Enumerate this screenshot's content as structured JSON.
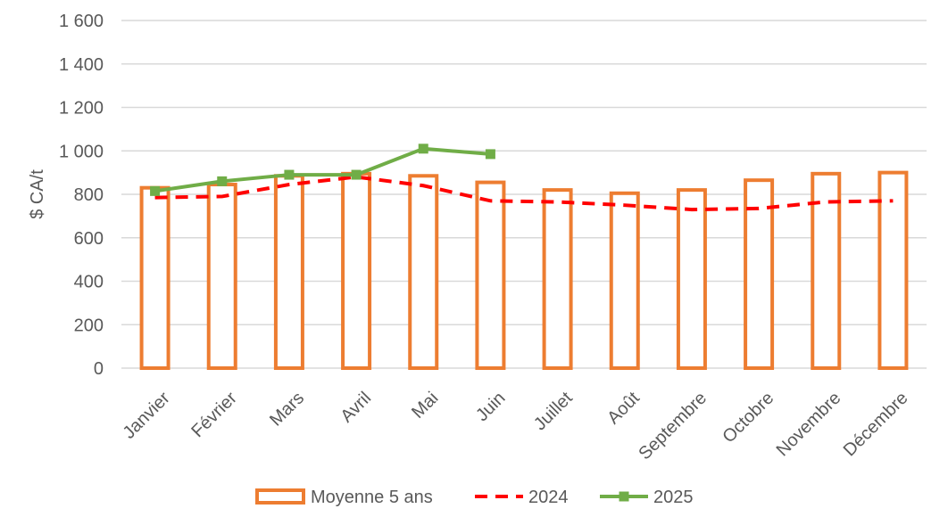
{
  "chart_data": {
    "type": "bar",
    "ylabel": "$ CA/t",
    "ylim": [
      0,
      1600
    ],
    "yticks": [
      0,
      200,
      400,
      600,
      800,
      1000,
      1200,
      1400,
      1600
    ],
    "ytick_labels": [
      "0",
      "200",
      "400",
      "600",
      "800",
      "1 000",
      "1 200",
      "1 400",
      "1 600"
    ],
    "grid": true,
    "legend_position": "bottom",
    "categories": [
      "Janvier",
      "Février",
      "Mars",
      "Avril",
      "Mai",
      "Juin",
      "Juillet",
      "Août",
      "Septembre",
      "Octobre",
      "Novembre",
      "Décembre"
    ],
    "series": [
      {
        "name": "Moyenne 5 ans",
        "type": "bar",
        "style": "outline",
        "color": "#ED7D31",
        "values": [
          830,
          845,
          885,
          895,
          885,
          855,
          820,
          805,
          820,
          865,
          895,
          900
        ]
      },
      {
        "name": "2024",
        "type": "line",
        "style": "dashed",
        "color": "#FF0000",
        "values": [
          785,
          790,
          845,
          880,
          840,
          770,
          765,
          750,
          730,
          735,
          765,
          770
        ]
      },
      {
        "name": "2025",
        "type": "line",
        "style": "solid-square-markers",
        "color": "#70AD47",
        "values": [
          815,
          860,
          890,
          890,
          1010,
          985,
          null,
          null,
          null,
          null,
          null,
          null
        ]
      }
    ]
  }
}
